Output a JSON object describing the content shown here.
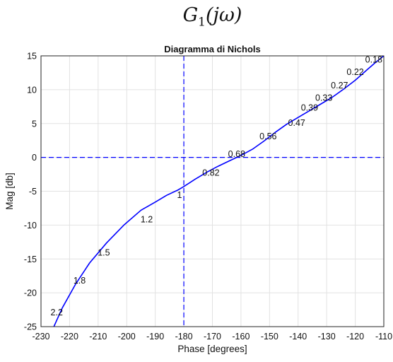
{
  "figure": {
    "heading_main": "G",
    "heading_sub": "1",
    "heading_arg": "(jω)"
  },
  "chart_data": {
    "type": "line",
    "title": "Diagramma di Nichols",
    "xlabel": "Phase [degrees]",
    "ylabel": "Mag [db]",
    "xlim": [
      -230,
      -110
    ],
    "ylim": [
      -25,
      15
    ],
    "xticks": [
      -230,
      -220,
      -210,
      -200,
      -190,
      -180,
      -170,
      -160,
      -150,
      -140,
      -130,
      -120,
      -110
    ],
    "yticks": [
      -25,
      -20,
      -15,
      -10,
      -5,
      0,
      5,
      10,
      15
    ],
    "grid": true,
    "line_color": "#0000ff",
    "reference_lines": [
      {
        "orientation": "vertical",
        "x": -180,
        "style": "dashed",
        "color": "#0000ff"
      },
      {
        "orientation": "horizontal",
        "y": 0,
        "style": "dashed",
        "color": "#0000ff"
      }
    ],
    "series": [
      {
        "x": [
          -225.5,
          -222.5,
          -218,
          -213,
          -207,
          -201,
          -195,
          -190,
          -186,
          -182,
          -180,
          -176,
          -172,
          -168,
          -164,
          -160,
          -156,
          -152,
          -148,
          -144,
          -140,
          -136,
          -132,
          -128,
          -124,
          -120,
          -116,
          -113,
          -110
        ],
        "y": [
          -25,
          -22.2,
          -18.8,
          -15.6,
          -12.6,
          -10,
          -7.8,
          -6.6,
          -5.6,
          -4.8,
          -4.3,
          -3.2,
          -2.2,
          -1.3,
          -0.5,
          0.3,
          1.2,
          2.4,
          3.7,
          4.9,
          5.9,
          6.9,
          7.9,
          8.9,
          10.1,
          11.4,
          12.9,
          14,
          15
        ]
      }
    ],
    "annotations": [
      {
        "text": "2.2",
        "x": -224.5,
        "y": -22.9
      },
      {
        "text": "1.8",
        "x": -216.5,
        "y": -18.2
      },
      {
        "text": "1.5",
        "x": -208,
        "y": -14.1
      },
      {
        "text": "1.2",
        "x": -193,
        "y": -9.2
      },
      {
        "text": "1",
        "x": -181.5,
        "y": -5.6
      },
      {
        "text": "0.82",
        "x": -170.5,
        "y": -2.3
      },
      {
        "text": "0.68",
        "x": -161.5,
        "y": 0.5
      },
      {
        "text": "0.56",
        "x": -150.5,
        "y": 3.1
      },
      {
        "text": "0.47",
        "x": -140.5,
        "y": 5.1
      },
      {
        "text": "0.39",
        "x": -136,
        "y": 7.3
      },
      {
        "text": "0.33",
        "x": -131,
        "y": 8.8
      },
      {
        "text": "0.27",
        "x": -125.5,
        "y": 10.6
      },
      {
        "text": "0.22",
        "x": -120,
        "y": 12.6
      },
      {
        "text": "0.18",
        "x": -113.5,
        "y": 14.4
      }
    ]
  }
}
